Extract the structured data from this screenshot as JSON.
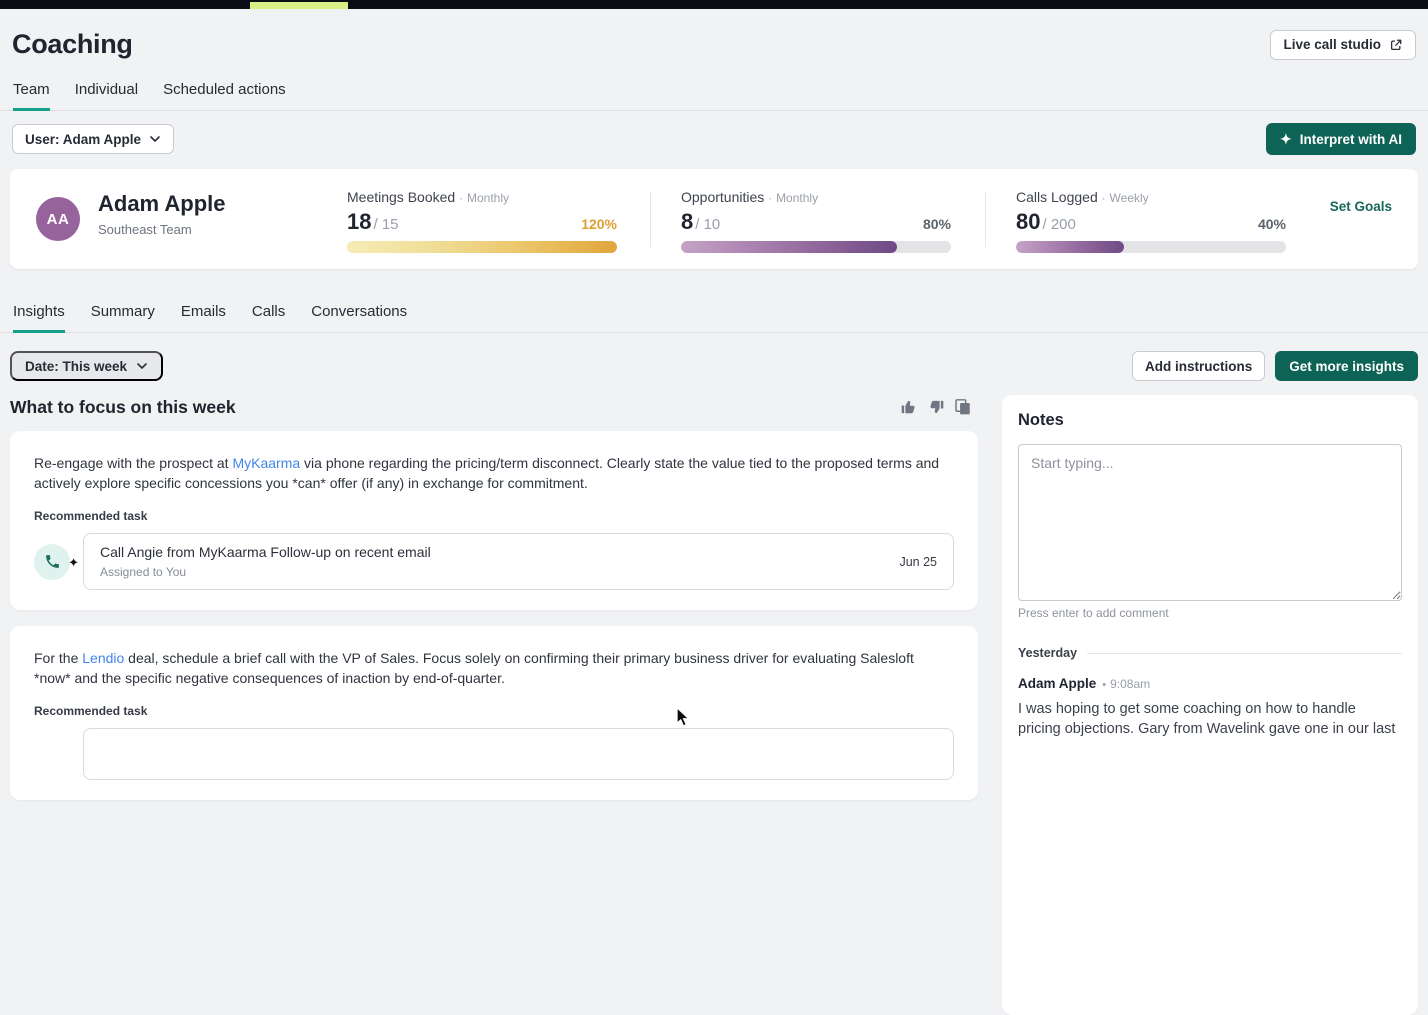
{
  "colors": {
    "teal_button": "#0d6355",
    "tab_underline": "#12a08a",
    "set_goals_link": "#17685a",
    "link_blue": "#4384e8",
    "gold_percent": "#dd9f33",
    "purple_avatar": "#96639d",
    "top_strip_highlight": "#d9ee85"
  },
  "header": {
    "title": "Coaching",
    "live_call_studio_label": "Live call studio"
  },
  "primary_tabs": {
    "active": "Team",
    "items": [
      {
        "label": "Team"
      },
      {
        "label": "Individual"
      },
      {
        "label": "Scheduled actions"
      }
    ]
  },
  "filter_bar": {
    "user_filter_label": "User: Adam Apple",
    "interpret_ai_label": "Interpret with AI",
    "sparkle_icon": "✦"
  },
  "profile_card": {
    "avatar_initials": "AA",
    "name": "Adam Apple",
    "team": "Southeast Team",
    "set_goals_label": "Set Goals",
    "metrics": [
      {
        "label": "Meetings Booked",
        "separator": "·",
        "period": "Monthly",
        "value": "18",
        "goal": "/ 15",
        "percent": "120%",
        "fill_percent": 100,
        "bar_style": "gold"
      },
      {
        "label": "Opportunities",
        "separator": "·",
        "period": "Monthly",
        "value": "8",
        "goal": "/ 10",
        "percent": "80%",
        "fill_percent": 80,
        "bar_style": "purple"
      },
      {
        "label": "Calls Logged",
        "separator": "·",
        "period": "Weekly",
        "value": "80",
        "goal": "/ 200",
        "percent": "40%",
        "fill_percent": 40,
        "bar_style": "purple"
      }
    ]
  },
  "secondary_tabs": {
    "active": "Insights",
    "items": [
      {
        "label": "Insights"
      },
      {
        "label": "Summary"
      },
      {
        "label": "Emails"
      },
      {
        "label": "Calls"
      },
      {
        "label": "Conversations"
      }
    ]
  },
  "insights_toolbar": {
    "date_filter_label": "Date: This week",
    "add_instructions_label": "Add instructions",
    "get_more_insights_label": "Get more insights"
  },
  "focus_section": {
    "heading": "What to focus on this week",
    "cards": [
      {
        "text_before": "Re-engage with the prospect at ",
        "link": "MyKaarma",
        "text_after": " via phone regarding the pricing/term disconnect. Clearly state the value tied to the proposed terms and actively explore specific concessions you *can* offer (if any) in exchange for commitment.",
        "recommended_label": "Recommended task",
        "task": {
          "title_strong": "Call Angie from MyKaarma",
          "title_rest": " Follow-up on recent email",
          "assigned_to": "Assigned to You",
          "due_date": "Jun 25",
          "sparkle_icon": "✦"
        }
      },
      {
        "text_before": "For the ",
        "link": "Lendio",
        "text_after": " deal, schedule a brief call with the VP of Sales. Focus solely on confirming their primary business driver for evaluating Salesloft *now* and the specific negative consequences of inaction by end-of-quarter.",
        "recommended_label": "Recommended task"
      }
    ]
  },
  "notes_panel": {
    "title": "Notes",
    "input_placeholder": "Start typing...",
    "input_value": "",
    "helper_text": "Press enter to add comment",
    "day_divider": "Yesterday",
    "comments": [
      {
        "author": "Adam Apple",
        "time_separator": "•",
        "time": "9:08am",
        "text": "I was hoping to get some coaching on how to handle pricing objections. Gary from Wavelink gave one in our last"
      }
    ]
  }
}
